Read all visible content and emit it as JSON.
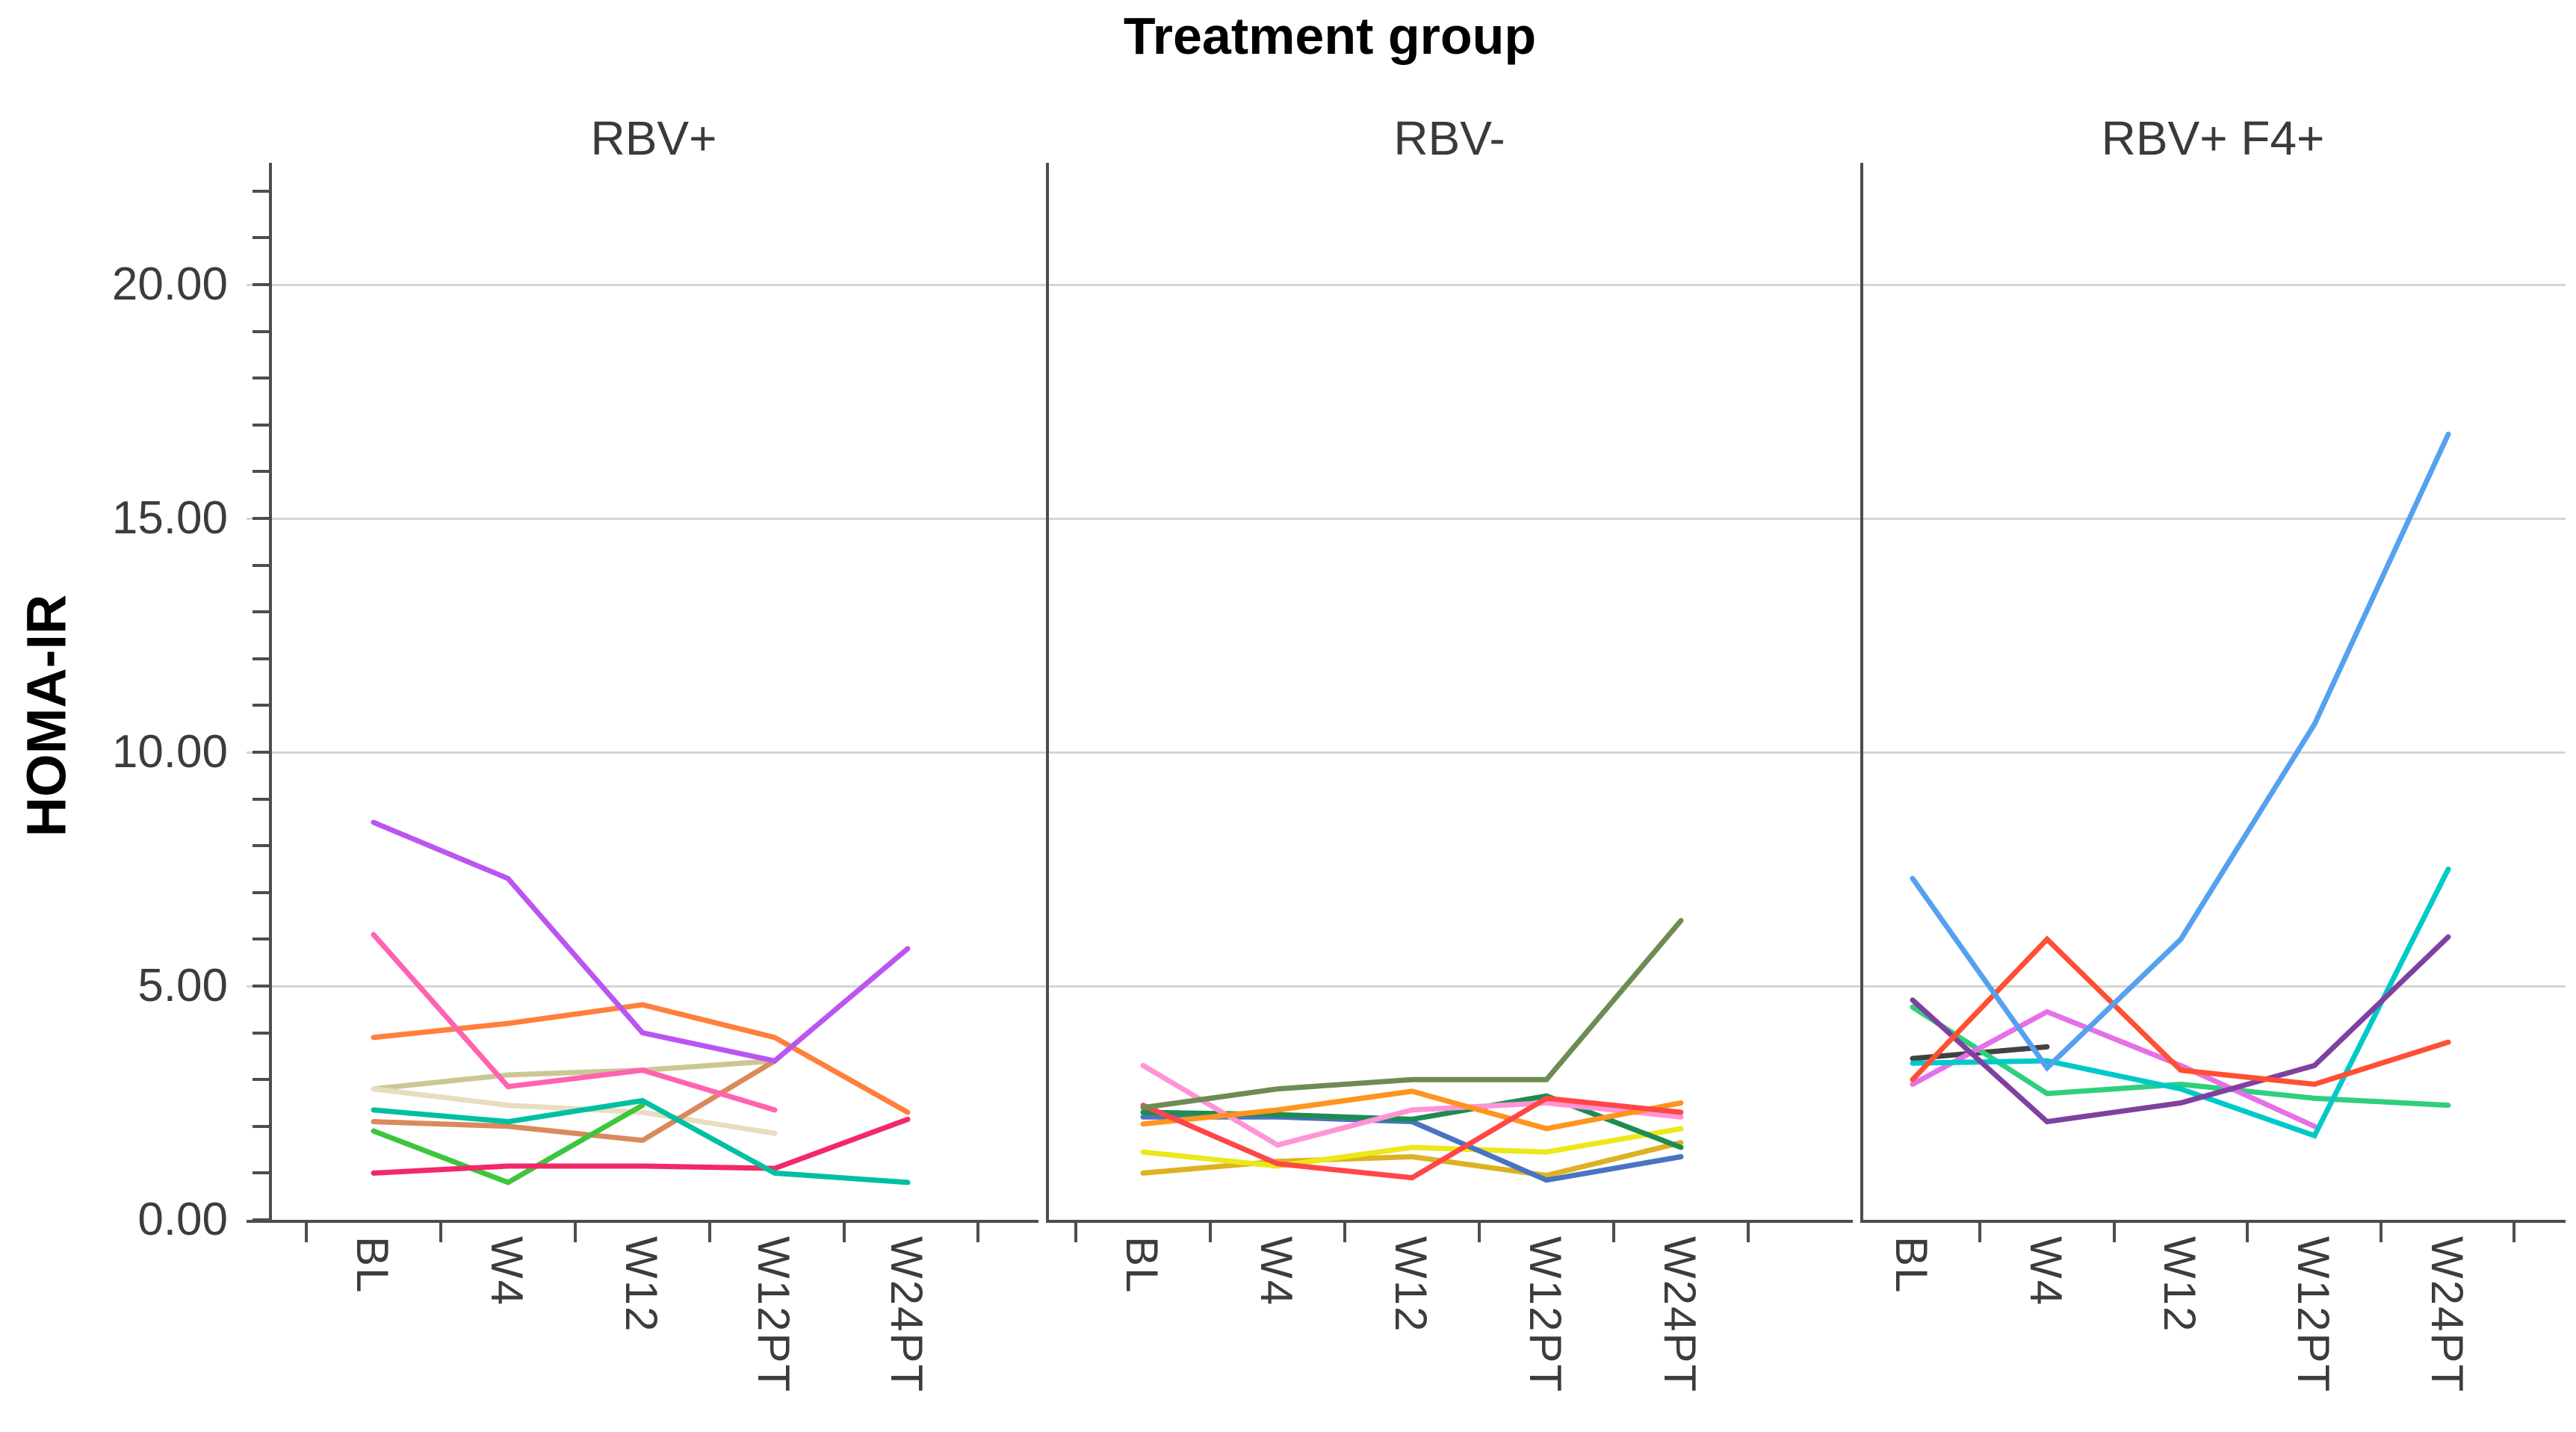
{
  "title": "Treatment group",
  "y_axis": {
    "label": "HOMA-IR",
    "tick_labels": [
      "20.00",
      "15.00",
      "10.00",
      "5.00",
      "0.00"
    ],
    "tick_values": [
      20,
      15,
      10,
      5,
      0
    ],
    "ylim": [
      0,
      22.6
    ],
    "gridline_values": [
      5,
      10,
      15,
      20
    ],
    "grid_color": "#d5d5d5",
    "axis_color": "#4d4d4d"
  },
  "x_axis": {
    "categories": [
      "BL",
      "W4",
      "W12",
      "W12PT",
      "W24PT"
    ]
  },
  "chart_data": {
    "type": "line",
    "title": "Treatment group",
    "ylabel": "HOMA-IR",
    "xlabel": "",
    "categories": [
      "BL",
      "W4",
      "W12",
      "W12PT",
      "W24PT"
    ],
    "ylim": [
      0,
      22.6
    ],
    "legend": "none",
    "grid": "horizontal",
    "panels": [
      {
        "label": "RBV+",
        "series": [
          {
            "color": "#cbc795",
            "values": [
              2.8,
              3.1,
              3.2,
              3.4,
              null
            ]
          },
          {
            "color": "#e9dcc0",
            "values": [
              2.8,
              2.45,
              2.3,
              1.85,
              null
            ]
          },
          {
            "color": "#d98a5c",
            "values": [
              2.1,
              2.0,
              1.7,
              3.4,
              null
            ]
          },
          {
            "color": "#3dc53d",
            "values": [
              1.9,
              0.8,
              2.45,
              null,
              null
            ]
          },
          {
            "color": "#f22966",
            "values": [
              1.0,
              1.15,
              1.15,
              1.1,
              2.15
            ]
          },
          {
            "color": "#00bfa2",
            "values": [
              2.35,
              2.1,
              2.55,
              1.0,
              0.8
            ]
          },
          {
            "color": "#ff7f3b",
            "values": [
              3.9,
              4.2,
              4.6,
              3.9,
              2.3
            ]
          },
          {
            "color": "#ff63b0",
            "values": [
              6.1,
              2.85,
              3.2,
              2.35,
              null
            ]
          },
          {
            "color": "#bb55f2",
            "values": [
              8.5,
              7.3,
              4.0,
              3.4,
              5.8
            ]
          }
        ]
      },
      {
        "label": "RBV-",
        "series": [
          {
            "color": "#ddb122",
            "values": [
              1.0,
              1.25,
              1.35,
              0.95,
              1.65
            ]
          },
          {
            "color": "#ece81a",
            "values": [
              1.45,
              1.15,
              1.55,
              1.45,
              1.95
            ]
          },
          {
            "color": "#4a73c2",
            "values": [
              2.2,
              2.2,
              2.1,
              0.85,
              1.35
            ]
          },
          {
            "color": "#1e8c52",
            "values": [
              2.3,
              2.25,
              2.15,
              2.65,
              1.55
            ]
          },
          {
            "color": "#ff94d6",
            "values": [
              3.3,
              1.6,
              2.35,
              2.5,
              2.2
            ]
          },
          {
            "color": "#ff941e",
            "values": [
              2.05,
              2.35,
              2.75,
              1.95,
              2.5
            ]
          },
          {
            "color": "#ff4747",
            "values": [
              2.45,
              1.2,
              0.9,
              2.6,
              2.3
            ]
          },
          {
            "color": "#6e8b52",
            "values": [
              2.4,
              2.8,
              3.0,
              3.0,
              6.4
            ]
          }
        ]
      },
      {
        "label": "RBV+ F4+",
        "series": [
          {
            "color": "#424242",
            "values": [
              3.45,
              3.7,
              null,
              null,
              null
            ]
          },
          {
            "color": "#2fcf7c",
            "values": [
              4.55,
              2.7,
              2.9,
              2.6,
              2.45
            ]
          },
          {
            "color": "#e76fe7",
            "values": [
              2.9,
              4.45,
              3.3,
              2.0,
              null
            ]
          },
          {
            "color": "#00c9c9",
            "values": [
              3.35,
              3.4,
              2.8,
              1.8,
              7.5
            ]
          },
          {
            "color": "#8040a0",
            "values": [
              4.7,
              2.1,
              2.5,
              3.3,
              6.05
            ]
          },
          {
            "color": "#ff5033",
            "values": [
              3.0,
              6.0,
              3.2,
              2.9,
              3.8
            ]
          },
          {
            "color": "#55a1f0",
            "values": [
              7.3,
              3.25,
              6.0,
              10.6,
              16.8
            ]
          }
        ]
      }
    ]
  }
}
